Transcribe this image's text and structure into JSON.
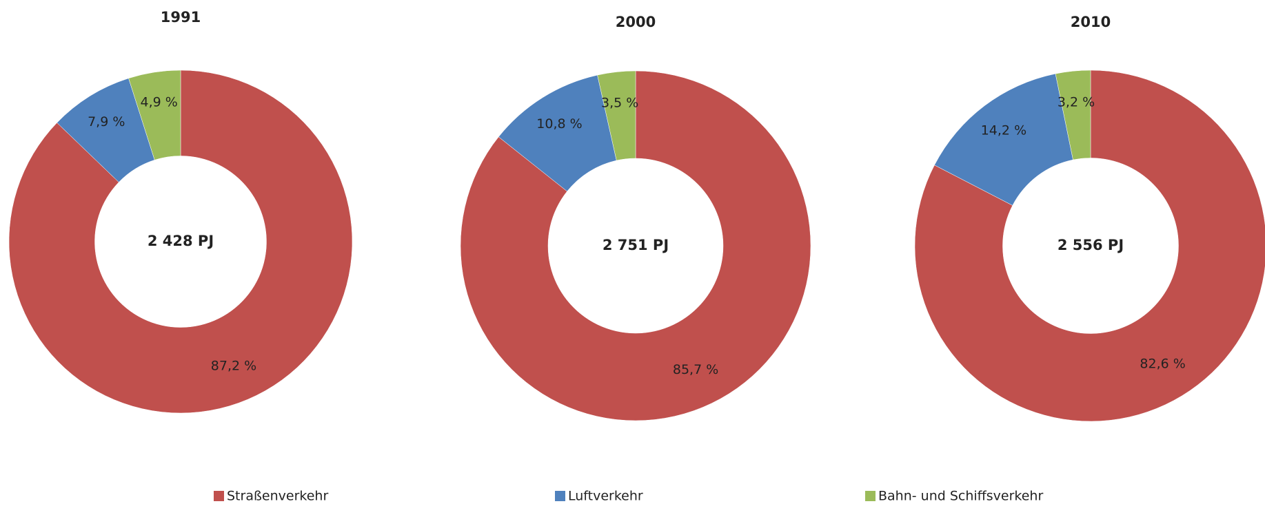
{
  "chart_data": [
    {
      "type": "donut",
      "title": "1991",
      "center_text": "2 428 PJ",
      "categories": [
        "Straßenverkehr",
        "Luftverkehr",
        "Bahn- und Schiffsverkehr"
      ],
      "values": [
        87.2,
        7.9,
        4.9
      ],
      "value_labels": [
        "87,2 %",
        "7,9 %",
        "4,9 %"
      ],
      "colors": [
        "#c0504d",
        "#4f81bd",
        "#9bbb59"
      ]
    },
    {
      "type": "donut",
      "title": "2000",
      "center_text": "2 751 PJ",
      "categories": [
        "Straßenverkehr",
        "Luftverkehr",
        "Bahn- und Schiffsverkehr"
      ],
      "values": [
        85.7,
        10.8,
        3.5
      ],
      "value_labels": [
        "85,7 %",
        "10,8 %",
        "3,5 %"
      ],
      "colors": [
        "#c0504d",
        "#4f81bd",
        "#9bbb59"
      ]
    },
    {
      "type": "donut",
      "title": "2010",
      "center_text": "2 556 PJ",
      "categories": [
        "Straßenverkehr",
        "Luftverkehr",
        "Bahn- und Schiffsverkehr"
      ],
      "values": [
        82.6,
        14.2,
        3.2
      ],
      "value_labels": [
        "82,6 %",
        "14,2 %",
        "3,2 %"
      ],
      "colors": [
        "#c0504d",
        "#4f81bd",
        "#9bbb59"
      ]
    }
  ]
}
